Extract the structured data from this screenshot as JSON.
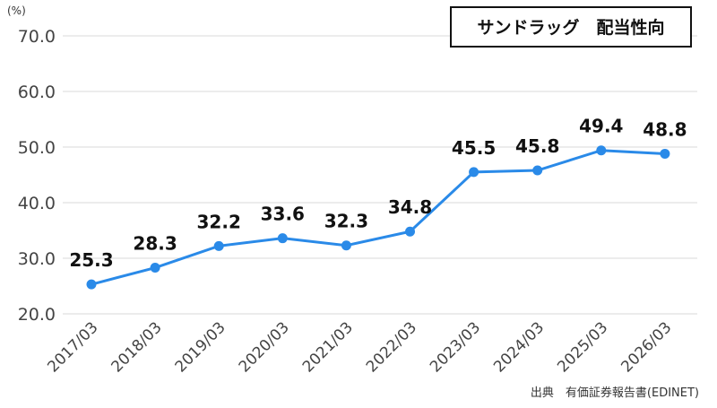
{
  "chart_data": {
    "type": "line",
    "title": "サンドラッグ　配当性向",
    "unit_label": "(%)",
    "source": "出典　有価証券報告書(EDINET)",
    "categories": [
      "2017/03",
      "2018/03",
      "2019/03",
      "2020/03",
      "2021/03",
      "2022/03",
      "2023/03",
      "2024/03",
      "2025/03",
      "2026/03"
    ],
    "series": [
      {
        "values": [
          25.3,
          28.3,
          32.2,
          33.6,
          32.3,
          34.8,
          45.5,
          45.8,
          49.4,
          48.8
        ]
      }
    ],
    "yticks": [
      "20.0",
      "30.0",
      "40.0",
      "50.0",
      "60.0",
      "70.0"
    ],
    "ylim": [
      20,
      70
    ],
    "grid": true,
    "legend": "none",
    "colors": {
      "line": "#2a8ae8",
      "grid": "#d9d9d9",
      "title_border": "#111111"
    }
  }
}
